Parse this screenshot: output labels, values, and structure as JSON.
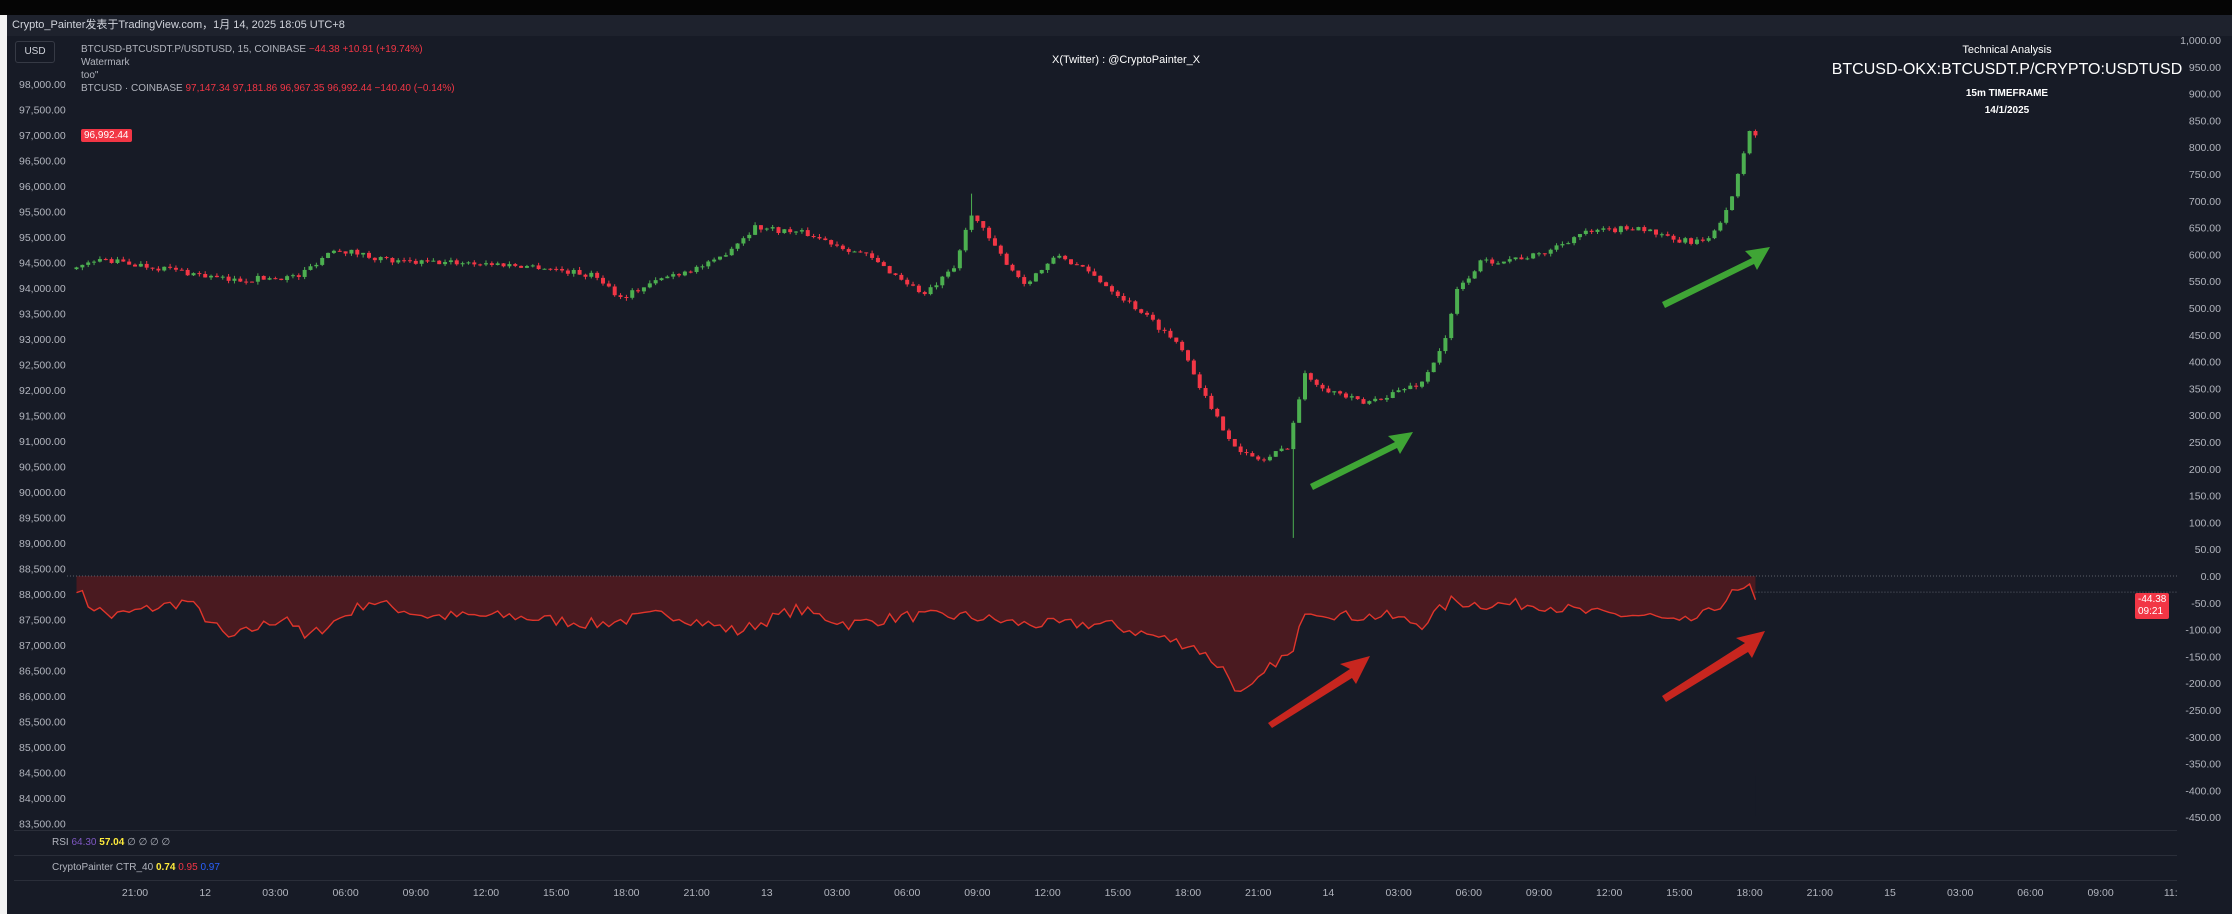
{
  "header": {
    "publisher_line": "Crypto_Painter发表于TradingView.com，1月 14, 2025 18:05 UTC+8"
  },
  "toolbar": {
    "currency_button": "USD"
  },
  "legend": {
    "spread_symbol": "BTCUSD-BTCUSDT.P/USDTUSD, 15, COINBASE",
    "spread_values": "−44.38  +10.91 (+19.74%)",
    "watermark": "Watermark",
    "watermark_sub": "too\"",
    "btc_symbol": "BTCUSD · COINBASE",
    "btc_values": "97,147.34  97,181.86  96,967.35  96,992.44  −140.40 (−0.14%)"
  },
  "overlay": {
    "twitter": "X(Twitter) : @CryptoPainter_X",
    "ta_heading": "Technical Analysis",
    "ta_title": "BTCUSD-OKX:BTCUSDT.P/CRYPTO:USDTUSD",
    "ta_timeframe": "15m TIMEFRAME",
    "ta_date": "14/1/2025"
  },
  "indicators": {
    "rsi_name": "RSI",
    "rsi_v1": "64.30",
    "rsi_v2": "57.04",
    "rsi_rest": "∅ ∅ ∅ ∅",
    "ctr_name": "CryptoPainter CTR_40",
    "ctr_v1": "0.74",
    "ctr_v2": "0.95",
    "ctr_v3": "0.97"
  },
  "colors": {
    "up": "#4caf50",
    "down": "#f23645",
    "background": "#171b26",
    "ctr_line": "#e0352b",
    "ctr_fill": "#4a1a20",
    "arrow_green": "#3fa535",
    "arrow_red": "#c8261f"
  },
  "chart_data": {
    "type": "candlestick",
    "symbol": "BTCUSD · COINBASE",
    "timeframe": "15m",
    "last_price": "96,992.44",
    "price_axis": {
      "range": [
        83500,
        98500
      ],
      "tick_step": 500,
      "side": "left",
      "ticks": [
        "98,000.00",
        "97,500.00",
        "97,000.00",
        "96,500.00",
        "96,000.00",
        "95,500.00",
        "95,000.00",
        "94,500.00",
        "94,000.00",
        "93,500.00",
        "93,000.00",
        "92,500.00",
        "92,000.00",
        "91,500.00",
        "91,000.00",
        "90,500.00",
        "90,000.00",
        "89,500.00",
        "89,000.00",
        "88,500.00",
        "88,000.00",
        "87,500.00",
        "87,000.00",
        "86,500.00",
        "86,000.00",
        "85,500.00",
        "85,000.00",
        "84,500.00",
        "84,000.00",
        "83,500.00"
      ]
    },
    "price_path": [
      [
        "2025-01-11 18:30",
        94370
      ],
      [
        "2025-01-11 19:30",
        94560
      ],
      [
        "2025-01-11 22:30",
        94370
      ],
      [
        "2025-01-12 01:00",
        94150
      ],
      [
        "2025-01-12 04:00",
        94230
      ],
      [
        "2025-01-12 05:30",
        94780
      ],
      [
        "2025-01-12 08:15",
        94500
      ],
      [
        "2025-01-12 11:15",
        94500
      ],
      [
        "2025-01-12 14:15",
        94420
      ],
      [
        "2025-01-12 16:45",
        94230
      ],
      [
        "2025-01-12 17:45",
        93810
      ],
      [
        "2025-01-12 19:45",
        94230
      ],
      [
        "2025-01-12 21:45",
        94500
      ],
      [
        "2025-01-12 23:30",
        95200
      ],
      [
        "2025-01-13 01:45",
        95060
      ],
      [
        "2025-01-13 04:15",
        94640
      ],
      [
        "2025-01-13 06:45",
        93870
      ],
      [
        "2025-01-13 08:00",
        94370
      ],
      [
        "2025-01-13 08:45",
        95480
      ],
      [
        "2025-01-13 09:45",
        94780
      ],
      [
        "2025-01-13 11:00",
        94090
      ],
      [
        "2025-01-13 12:30",
        94640
      ],
      [
        "2025-01-13 14:00",
        94230
      ],
      [
        "2025-01-13 16:00",
        93540
      ],
      [
        "2025-01-13 17:45",
        92840
      ],
      [
        "2025-01-13 19:00",
        91600
      ],
      [
        "2025-01-13 20:15",
        90760
      ],
      [
        "2025-01-13 21:15",
        90620
      ],
      [
        "2025-01-13 22:15",
        90900
      ],
      [
        "2025-01-13 23:00",
        92290
      ],
      [
        "2025-01-14 00:00",
        92010
      ],
      [
        "2025-01-14 01:30",
        91730
      ],
      [
        "2025-01-14 04:00",
        92150
      ],
      [
        "2025-01-14 05:00",
        92980
      ],
      [
        "2025-01-14 05:30",
        93950
      ],
      [
        "2025-01-14 06:30",
        94500
      ],
      [
        "2025-01-14 09:00",
        94640
      ],
      [
        "2025-01-14 10:45",
        95060
      ],
      [
        "2025-01-14 13:15",
        95200
      ],
      [
        "2025-01-14 14:45",
        94920
      ],
      [
        "2025-01-14 16:15",
        94920
      ],
      [
        "2025-01-14 17:15",
        95750
      ],
      [
        "2025-01-14 18:00",
        97100
      ],
      [
        "2025-01-14 18:15",
        96992.44
      ]
    ],
    "wick_extremes": [
      {
        "time": "2025-01-13 22:30",
        "low": 89100
      },
      {
        "time": "2025-01-13 08:45",
        "high": 95850
      }
    ],
    "ctr_axis": {
      "range": [
        -475,
        1025
      ],
      "tick_step": 50,
      "side": "right",
      "ticks": [
        "1,000.00",
        "950.00",
        "900.00",
        "850.00",
        "800.00",
        "750.00",
        "700.00",
        "650.00",
        "600.00",
        "550.00",
        "500.00",
        "450.00",
        "400.00",
        "350.00",
        "300.00",
        "250.00",
        "200.00",
        "150.00",
        "100.00",
        "50.00",
        "0.00",
        "-50.00",
        "-100.00",
        "-150.00",
        "-200.00",
        "-250.00",
        "-300.00",
        "-350.00",
        "-400.00",
        "-450.00"
      ]
    },
    "ctr_last": "-44.38",
    "ctr_countdown": "09:21",
    "ctr_path": [
      [
        "2025-01-11 18:30",
        -20
      ],
      [
        "2025-01-11 19:00",
        -53
      ],
      [
        "2025-01-11 20:00",
        -75
      ],
      [
        "2025-01-11 23:15",
        -47
      ],
      [
        "2025-01-12 01:00",
        -117
      ],
      [
        "2025-01-12 03:30",
        -75
      ],
      [
        "2025-01-12 04:15",
        -117
      ],
      [
        "2025-01-12 07:00",
        -47
      ],
      [
        "2025-01-12 09:30",
        -75
      ],
      [
        "2025-01-12 13:00",
        -75
      ],
      [
        "2025-01-12 16:45",
        -90
      ],
      [
        "2025-01-12 19:45",
        -70
      ],
      [
        "2025-01-12 22:45",
        -104
      ],
      [
        "2025-01-13 01:15",
        -62
      ],
      [
        "2025-01-13 03:30",
        -90
      ],
      [
        "2025-01-13 06:00",
        -75
      ],
      [
        "2025-01-13 08:30",
        -75
      ],
      [
        "2025-01-13 11:00",
        -90
      ],
      [
        "2025-01-13 14:30",
        -90
      ],
      [
        "2025-01-13 17:00",
        -117
      ],
      [
        "2025-01-13 18:15",
        -131
      ],
      [
        "2025-01-13 19:30",
        -173
      ],
      [
        "2025-01-13 20:15",
        -221
      ],
      [
        "2025-01-13 20:45",
        -210
      ],
      [
        "2025-01-13 21:45",
        -159
      ],
      [
        "2025-01-13 22:30",
        -145
      ],
      [
        "2025-01-13 23:00",
        -61
      ],
      [
        "2025-01-14 00:45",
        -75
      ],
      [
        "2025-01-14 02:30",
        -75
      ],
      [
        "2025-01-14 04:00",
        -90
      ],
      [
        "2025-01-14 05:15",
        -47
      ],
      [
        "2025-01-14 06:30",
        -53
      ],
      [
        "2025-01-14 09:00",
        -53
      ],
      [
        "2025-01-14 11:15",
        -70
      ],
      [
        "2025-01-14 13:45",
        -75
      ],
      [
        "2025-01-14 15:00",
        -90
      ],
      [
        "2025-01-14 16:15",
        -70
      ],
      [
        "2025-01-14 17:15",
        -34
      ],
      [
        "2025-01-14 18:00",
        -25
      ],
      [
        "2025-01-14 18:15",
        -44.38
      ]
    ],
    "time_axis": {
      "ticks": [
        "21:00",
        "12",
        "03:00",
        "06:00",
        "09:00",
        "12:00",
        "15:00",
        "18:00",
        "21:00",
        "13",
        "03:00",
        "06:00",
        "09:00",
        "12:00",
        "15:00",
        "18:00",
        "21:00",
        "14",
        "03:00",
        "06:00",
        "09:00",
        "12:00",
        "15:00",
        "18:00",
        "21:00",
        "15",
        "03:00",
        "06:00",
        "09:00",
        "11:"
      ]
    },
    "grid": false,
    "legend": "top-left"
  }
}
